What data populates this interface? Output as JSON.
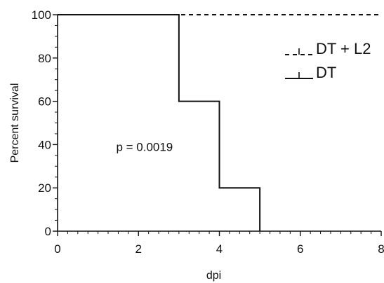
{
  "chart_data": {
    "type": "line",
    "subtype": "step",
    "title": "",
    "xlabel": "dpi",
    "ylabel": "Percent survival",
    "xlim": [
      0,
      8
    ],
    "ylim": [
      0,
      100
    ],
    "xticks": [
      0,
      2,
      4,
      6,
      8
    ],
    "xtick_labels": [
      "0",
      "2",
      "4",
      "6",
      "8"
    ],
    "yticks": [
      0,
      20,
      40,
      60,
      80,
      100
    ],
    "ytick_labels": [
      "0",
      "20",
      "40",
      "60",
      "80",
      "100"
    ],
    "grid": false,
    "legend_position": "top-right",
    "series": [
      {
        "name": "DT + L2",
        "style": "dashed",
        "color": "#111111",
        "x": [
          0,
          8
        ],
        "y": [
          100,
          100
        ]
      },
      {
        "name": "DT",
        "style": "solid",
        "color": "#111111",
        "x": [
          0,
          3,
          3,
          4,
          4,
          5,
          5
        ],
        "y": [
          100,
          100,
          60,
          60,
          20,
          20,
          0
        ]
      }
    ],
    "annotations": [
      {
        "text": "p = 0.0019",
        "x": 1.5,
        "y": 37
      }
    ]
  }
}
